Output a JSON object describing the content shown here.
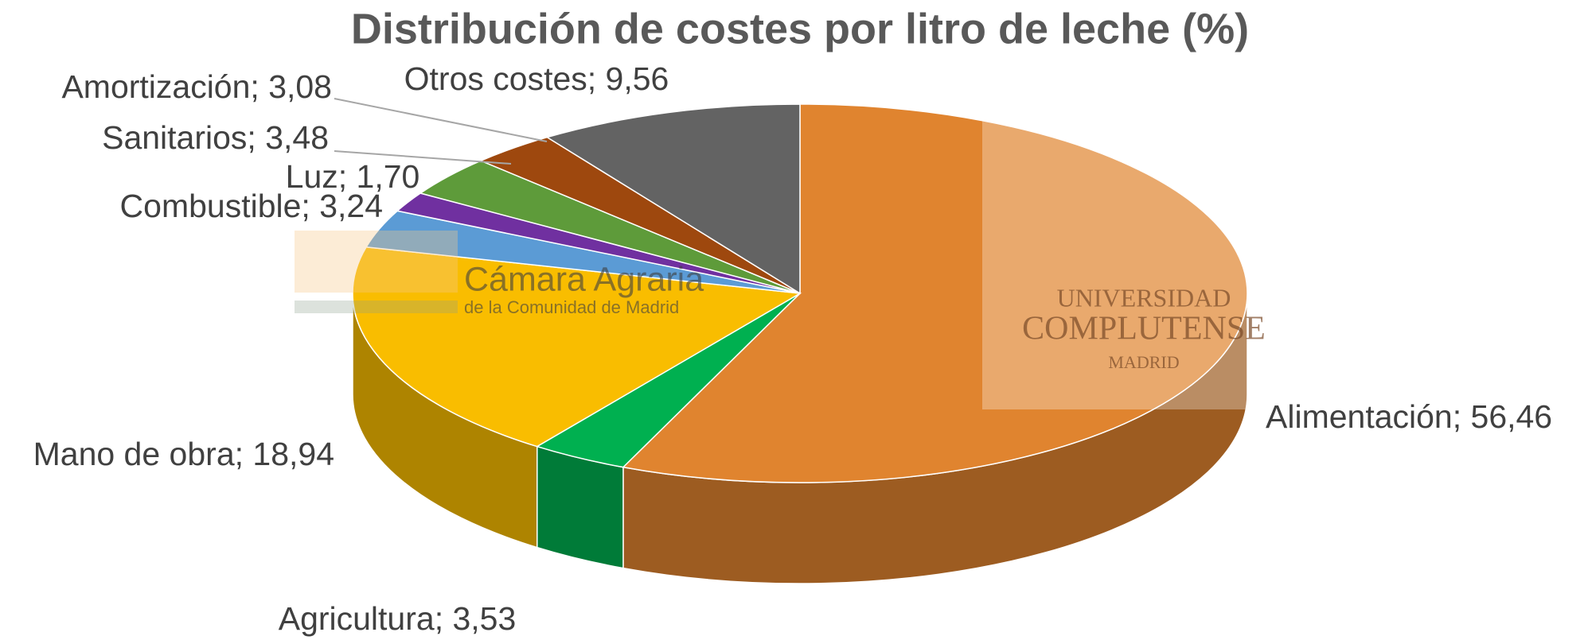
{
  "chart_data": {
    "type": "pie3d",
    "title": "Distribución de costes por litro de leche (%)",
    "values": [
      56.46,
      3.53,
      18.94,
      3.24,
      1.7,
      3.48,
      3.08,
      9.56
    ],
    "value_labels": [
      "Alimentación; 56,46",
      "Agricultura; 3,53",
      "Mano de obra; 18,94",
      "Combustible; 3,24",
      "Luz; 1,70",
      "Sanitarios; 3,48",
      "Amortización; 3,08",
      "Otros costes; 9,56"
    ],
    "colors": [
      "#e0842f",
      "#00b050",
      "#f9bd00",
      "#5b9bd5",
      "#7030a0",
      "#5e9b3a",
      "#9e480e",
      "#636363"
    ]
  },
  "watermarks": {
    "camara": [
      "Cámara Agraria",
      "de la Comunidad de Madrid"
    ],
    "universidad": [
      "UNIVERSIDAD",
      "COMPLUTENSE",
      "MADRID"
    ]
  }
}
